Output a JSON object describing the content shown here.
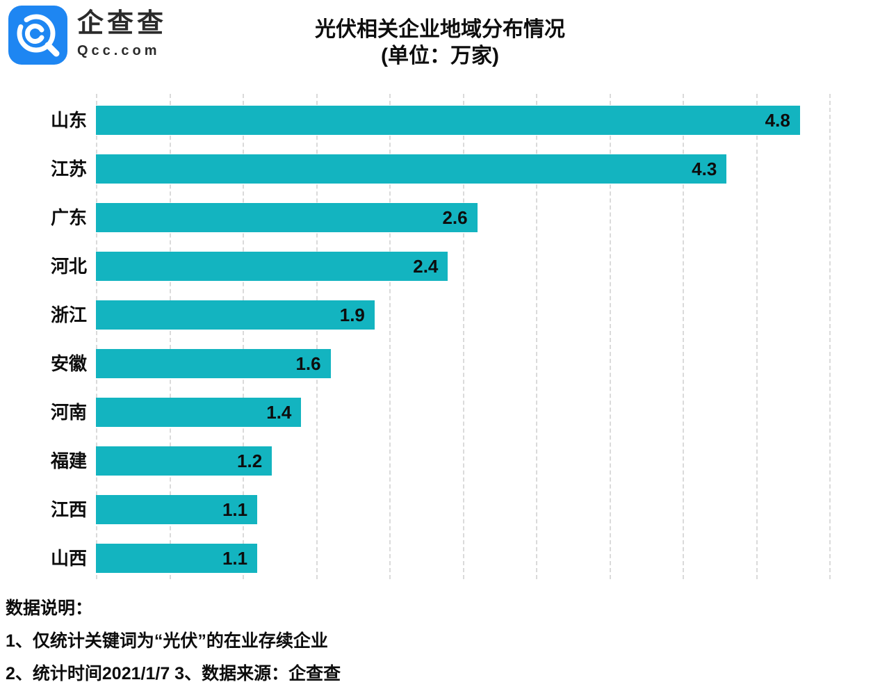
{
  "header": {
    "logo": {
      "name": "企查查",
      "domain": "Qcc.com",
      "icon": "qcc-magnifier-icon",
      "brand_color": "#1e86f2"
    },
    "title": "光伏相关企业地域分布情况",
    "subtitle": "(单位：万家)"
  },
  "chart_data": {
    "type": "bar",
    "orientation": "horizontal",
    "title": "光伏相关企业地域分布情况",
    "unit": "万家",
    "categories": [
      "山东",
      "江苏",
      "广东",
      "河北",
      "浙江",
      "安徽",
      "河南",
      "福建",
      "江西",
      "山西"
    ],
    "values": [
      4.8,
      4.3,
      2.6,
      2.4,
      1.9,
      1.6,
      1.4,
      1.2,
      1.1,
      1.1
    ],
    "xlim": [
      0,
      5
    ],
    "xticks": [
      0,
      0.5,
      1,
      1.5,
      2,
      2.5,
      3,
      3.5,
      4,
      4.5,
      5
    ],
    "grid": "dashed-vertical",
    "legend": "none",
    "bar_color": "#13b4c0",
    "grid_color": "#dadada",
    "value_label_color": "#0d0d0d"
  },
  "footer": {
    "heading": "数据说明：",
    "notes": [
      "1、仅统计关键词为“光伏”的在业存续企业",
      "2、统计时间2021/1/7  3、数据来源：企查查"
    ]
  }
}
